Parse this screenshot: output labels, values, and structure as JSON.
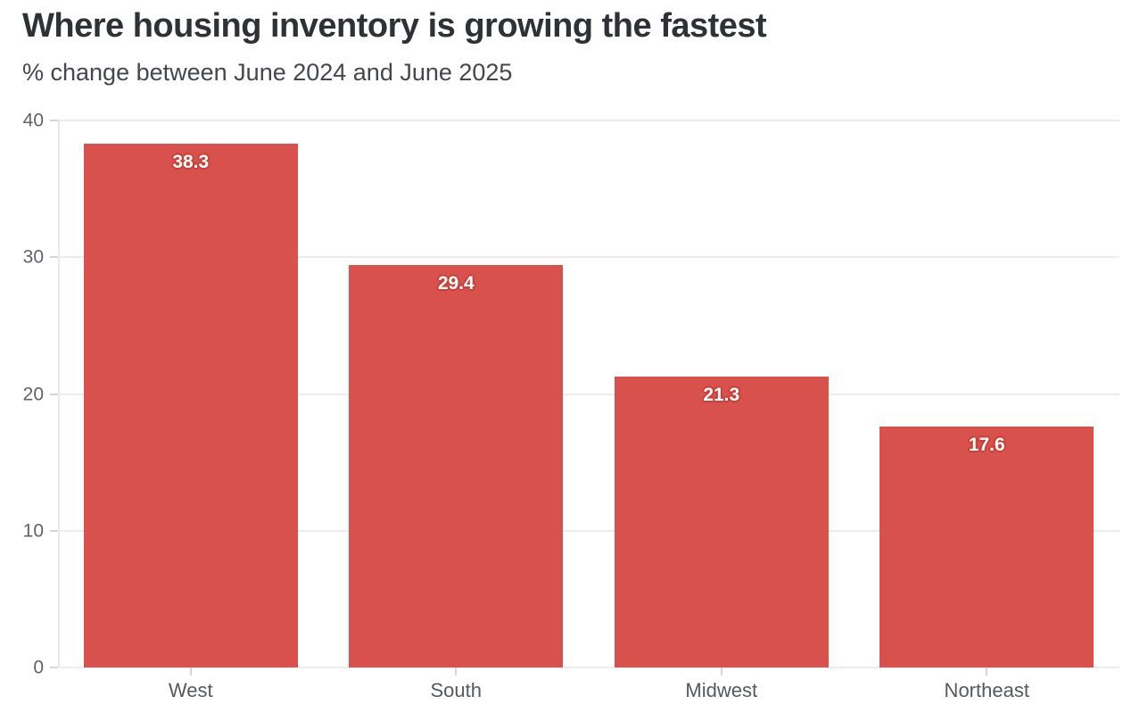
{
  "chart_data": {
    "type": "bar",
    "title": "Where housing inventory is growing the fastest",
    "subtitle": "% change between June 2024 and June 2025",
    "categories": [
      "West",
      "South",
      "Midwest",
      "Northeast"
    ],
    "values": [
      38.3,
      29.4,
      21.3,
      17.6
    ],
    "value_labels": [
      "38.3",
      "29.4",
      "21.3",
      "17.6"
    ],
    "xlabel": "",
    "ylabel": "",
    "ylim": [
      0,
      40
    ],
    "yticks": [
      0,
      10,
      20,
      30,
      40
    ],
    "grid": "horizontal",
    "legend": "none",
    "bar_color": "#d9514c",
    "label_halo_color": "#c74039",
    "background_color": "#ffffff"
  }
}
